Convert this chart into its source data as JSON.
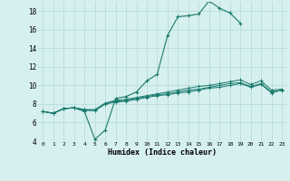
{
  "xlabel": "Humidex (Indice chaleur)",
  "background_color": "#d6f0ef",
  "grid_color": "#b8dcda",
  "line_color": "#1a7a6e",
  "xlim": [
    -0.5,
    23.5
  ],
  "ylim": [
    4,
    19
  ],
  "xtick_labels": [
    "0",
    "1",
    "2",
    "3",
    "4",
    "5",
    "6",
    "7",
    "8",
    "9",
    "10",
    "11",
    "12",
    "13",
    "14",
    "15",
    "16",
    "17",
    "18",
    "19",
    "20",
    "21",
    "22",
    "23"
  ],
  "ytick_labels": [
    "4",
    "6",
    "8",
    "10",
    "12",
    "14",
    "16",
    "18"
  ],
  "xticks": [
    0,
    1,
    2,
    3,
    4,
    5,
    6,
    7,
    8,
    9,
    10,
    11,
    12,
    13,
    14,
    15,
    16,
    17,
    18,
    19,
    20,
    21,
    22,
    23
  ],
  "yticks": [
    4,
    6,
    8,
    10,
    12,
    14,
    16,
    18
  ],
  "series": [
    {
      "x": [
        0,
        1,
        2,
        3,
        4,
        5,
        6,
        7,
        8,
        9,
        10,
        11,
        12,
        13,
        14,
        15,
        16,
        17,
        18,
        19
      ],
      "y": [
        7.2,
        7.0,
        7.5,
        7.6,
        7.2,
        4.2,
        5.2,
        8.6,
        8.8,
        9.3,
        10.5,
        11.2,
        15.4,
        17.4,
        17.5,
        17.7,
        19.1,
        18.3,
        17.8,
        16.7
      ]
    },
    {
      "x": [
        0,
        1,
        2,
        3,
        4,
        5,
        6,
        7,
        8,
        9,
        10,
        11,
        12,
        13,
        14,
        15,
        16,
        17,
        18,
        19,
        20,
        21,
        22,
        23
      ],
      "y": [
        7.2,
        7.0,
        7.5,
        7.6,
        7.4,
        7.4,
        8.1,
        8.4,
        8.5,
        8.7,
        8.9,
        9.1,
        9.3,
        9.5,
        9.7,
        9.9,
        10.0,
        10.2,
        10.4,
        10.6,
        10.1,
        10.5,
        9.5,
        9.6
      ]
    },
    {
      "x": [
        0,
        1,
        2,
        3,
        4,
        5,
        6,
        7,
        8,
        9,
        10,
        11,
        12,
        13,
        14,
        15,
        16,
        17,
        18,
        19,
        20,
        21,
        22,
        23
      ],
      "y": [
        7.2,
        7.0,
        7.5,
        7.6,
        7.4,
        7.3,
        8.0,
        8.3,
        8.4,
        8.6,
        8.8,
        9.0,
        9.1,
        9.3,
        9.5,
        9.6,
        9.8,
        10.0,
        10.2,
        10.3,
        9.9,
        10.2,
        9.3,
        9.5
      ]
    },
    {
      "x": [
        0,
        1,
        2,
        3,
        4,
        5,
        6,
        7,
        8,
        9,
        10,
        11,
        12,
        13,
        14,
        15,
        16,
        17,
        18,
        19,
        20,
        21,
        22,
        23
      ],
      "y": [
        7.2,
        7.0,
        7.5,
        7.6,
        7.3,
        7.3,
        8.0,
        8.2,
        8.3,
        8.5,
        8.7,
        8.9,
        9.0,
        9.2,
        9.3,
        9.5,
        9.7,
        9.8,
        10.0,
        10.2,
        9.8,
        10.1,
        9.2,
        9.5
      ]
    }
  ]
}
